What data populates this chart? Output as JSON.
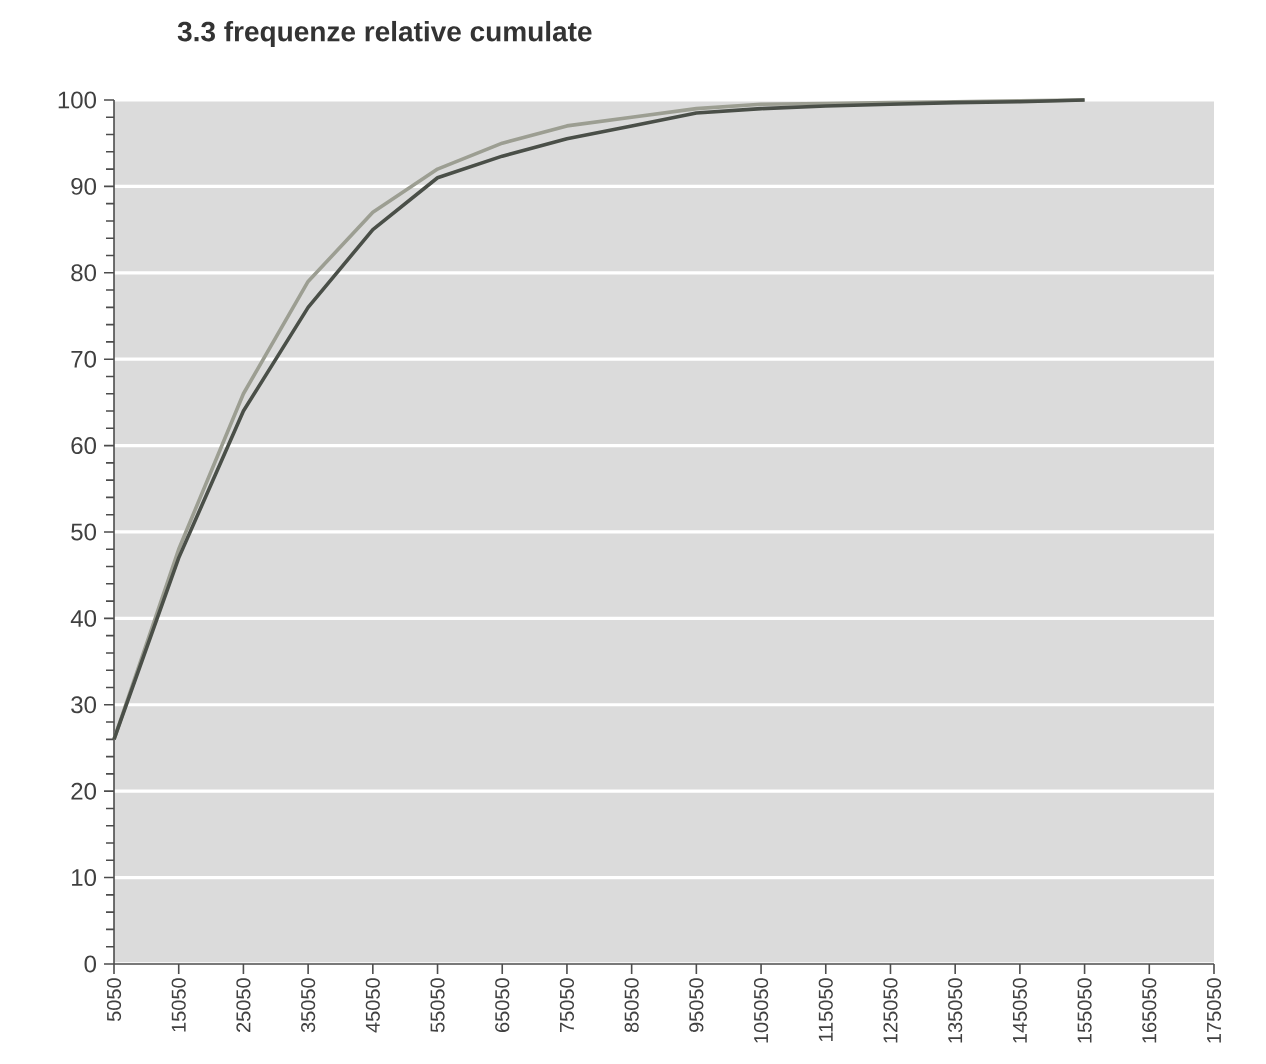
{
  "chart_data": {
    "type": "line",
    "title": "3.3 frequenze relative cumulate",
    "x": [
      5050,
      15050,
      25050,
      35050,
      45050,
      55050,
      65050,
      75050,
      85050,
      95050,
      105050,
      115050,
      125050,
      135050,
      145050,
      155050
    ],
    "xlim": [
      5050,
      175050
    ],
    "xticks": [
      5050,
      15050,
      25050,
      35050,
      45050,
      55050,
      65050,
      75050,
      85050,
      95050,
      105050,
      115050,
      125050,
      135050,
      145050,
      155050,
      165050,
      175050
    ],
    "ylim": [
      0,
      100
    ],
    "yticks": [
      0,
      10,
      20,
      30,
      40,
      50,
      60,
      70,
      80,
      90,
      100
    ],
    "grid": "y",
    "marker": "none",
    "line_style": "solid",
    "series": [
      {
        "color": "#9c9e92",
        "values": [
          26,
          48,
          66,
          79,
          87,
          92,
          95,
          97,
          98,
          99,
          99.5,
          99.6,
          99.7,
          99.8,
          99.9,
          100
        ]
      },
      {
        "color": "#4a4f48",
        "values": [
          26,
          47,
          64,
          76,
          85,
          91,
          93.5,
          95.5,
          97,
          98.5,
          99,
          99.3,
          99.5,
          99.7,
          99.8,
          100
        ]
      }
    ]
  }
}
